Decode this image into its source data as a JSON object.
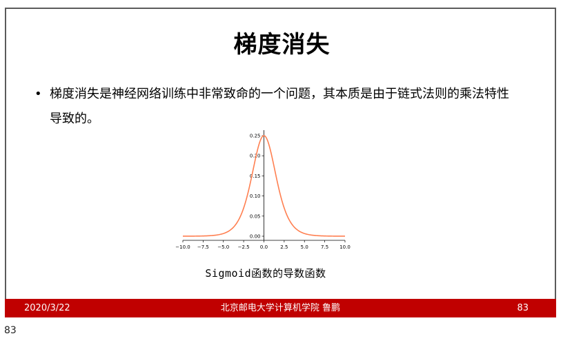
{
  "slide": {
    "title": "梯度消失",
    "bullet_marker": "•",
    "bullet_text": "梯度消失是神经网络训练中非常致命的一个问题，其本质是由于链式法则的乘法特性导致的。",
    "caption": "Sigmoid函数的导数函数"
  },
  "footer": {
    "date": "2020/3/22",
    "center": "北京邮电大学计算机学院  鲁鹏",
    "page": "83"
  },
  "below_slide_number": "83",
  "colors": {
    "footer_bg": "#c00000",
    "curve": "#ff7f50",
    "frame": "#5a5a5a"
  },
  "chart_data": {
    "type": "line",
    "title": "",
    "xlabel": "",
    "ylabel": "",
    "xlim": [
      -10,
      10
    ],
    "ylim": [
      0,
      0.25
    ],
    "x_ticks": [
      "−10.0",
      "−7.5",
      "−5.0",
      "−2.5",
      "0.0",
      "2.5",
      "5.0",
      "7.5",
      "10.0"
    ],
    "y_ticks": [
      "0.00",
      "0.05",
      "0.10",
      "0.15",
      "0.20",
      "0.25"
    ],
    "series": [
      {
        "x": [
          -10,
          -8,
          -6,
          -5,
          -4,
          -3,
          -2.5,
          -2,
          -1.5,
          -1,
          -0.5,
          0,
          0.5,
          1,
          1.5,
          2,
          2.5,
          3,
          4,
          5,
          6,
          8,
          10
        ],
        "values": [
          5e-05,
          0.0003,
          0.0025,
          0.0066,
          0.0177,
          0.0452,
          0.0701,
          0.105,
          0.1491,
          0.1966,
          0.235,
          0.25,
          0.235,
          0.1966,
          0.1491,
          0.105,
          0.0701,
          0.0452,
          0.0177,
          0.0066,
          0.0025,
          0.0003,
          5e-05
        ]
      }
    ],
    "grid": false,
    "axes_style": "centered y-axis spine at x=0, bottom x-axis spine"
  }
}
